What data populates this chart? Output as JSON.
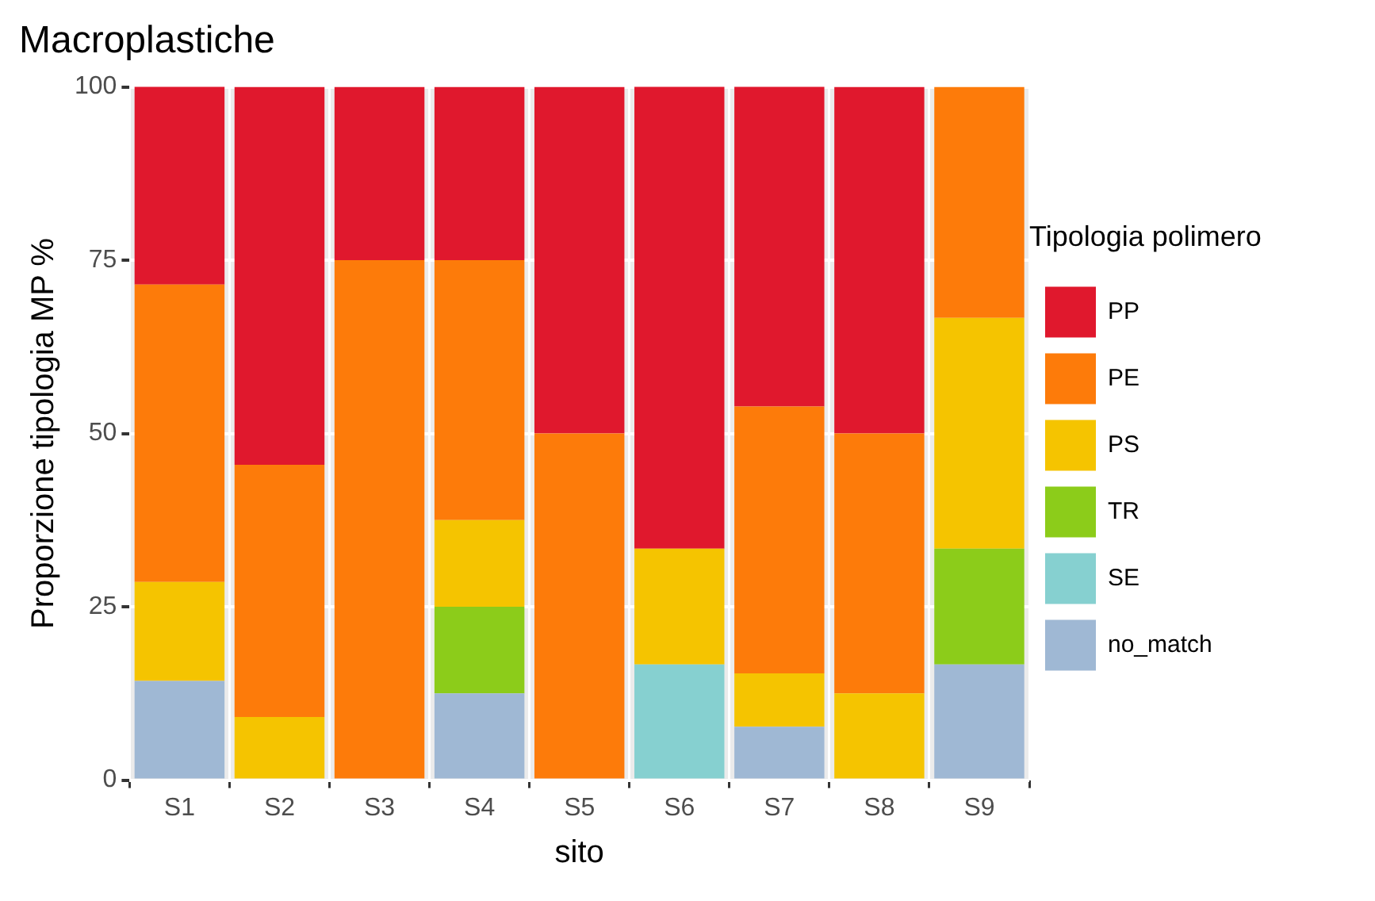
{
  "chart_data": {
    "type": "bar",
    "title": "Macroplastiche",
    "xlabel": "sito",
    "ylabel": "Proporzione tipologia MP %",
    "legend_title": "Tipologia polimero",
    "categories": [
      "S1",
      "S2",
      "S3",
      "S4",
      "S5",
      "S6",
      "S7",
      "S8",
      "S9"
    ],
    "stacked": true,
    "ylim": [
      0,
      100
    ],
    "yticks": [
      0,
      25,
      50,
      75,
      100
    ],
    "grid": true,
    "legend": "right",
    "series": [
      {
        "name": "no_match",
        "color": "#9fb8d4",
        "values": [
          14.3,
          0,
          0,
          12.5,
          0,
          0,
          7.7,
          0,
          16.7
        ]
      },
      {
        "name": "SE",
        "color": "#86d0d0",
        "values": [
          0,
          0,
          0,
          0,
          0,
          16.7,
          0,
          0,
          0
        ]
      },
      {
        "name": "TR",
        "color": "#8ccc1a",
        "values": [
          0,
          0,
          0,
          12.5,
          0,
          0,
          0,
          0,
          16.7
        ]
      },
      {
        "name": "PS",
        "color": "#f5c400",
        "values": [
          14.3,
          9.1,
          0,
          12.5,
          0,
          16.7,
          7.7,
          12.5,
          33.3
        ]
      },
      {
        "name": "PE",
        "color": "#fd7b0a",
        "values": [
          42.9,
          36.4,
          75,
          37.5,
          50,
          0,
          38.5,
          37.5,
          33.3
        ]
      },
      {
        "name": "PP",
        "color": "#e0182d",
        "values": [
          28.6,
          54.5,
          25,
          25,
          50,
          66.7,
          46.2,
          50,
          0
        ]
      }
    ]
  }
}
